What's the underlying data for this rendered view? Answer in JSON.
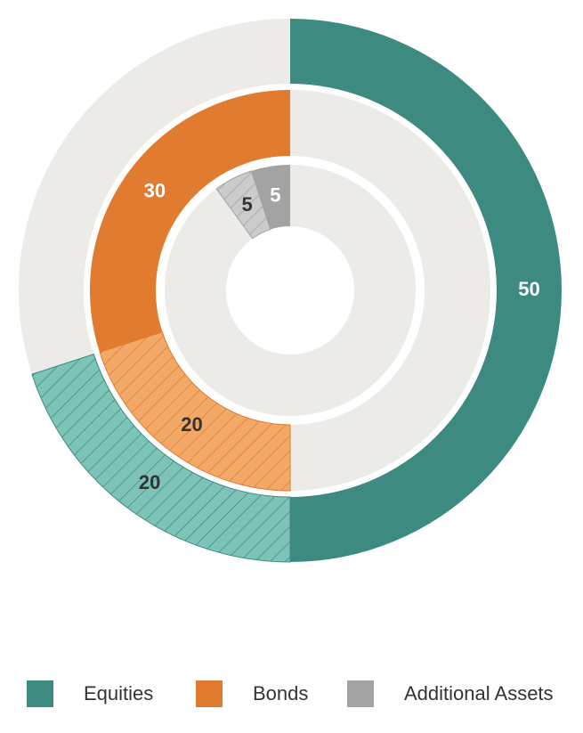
{
  "chart_data": {
    "type": "nested-donut",
    "total": 100,
    "series": [
      {
        "name": "Equities",
        "color": "#3d8b80",
        "hatch_color": "#7dc3b7",
        "direction": "clockwise",
        "values": [
          50,
          20
        ]
      },
      {
        "name": "Bonds",
        "color": "#e07b30",
        "hatch_color": "#f2a968",
        "direction": "counterclockwise",
        "values": [
          30,
          20
        ]
      },
      {
        "name": "Additional Assets",
        "color": "#a3a3a3",
        "hatch_color": "#cbcbcb",
        "direction": "counterclockwise",
        "values": [
          5,
          5
        ]
      }
    ]
  }
}
